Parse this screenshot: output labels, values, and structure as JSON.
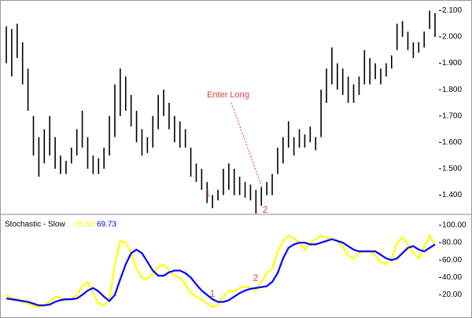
{
  "chart_data": [
    {
      "type": "ohlc",
      "color": "#000000",
      "high": [
        2.04,
        2.03,
        2.05,
        1.98,
        1.88,
        1.7,
        1.62,
        1.65,
        1.7,
        1.62,
        1.55,
        1.53,
        1.58,
        1.65,
        1.72,
        1.62,
        1.55,
        1.54,
        1.58,
        1.7,
        1.82,
        1.88,
        1.85,
        1.78,
        1.72,
        1.65,
        1.62,
        1.7,
        1.78,
        1.8,
        1.75,
        1.7,
        1.68,
        1.65,
        1.58,
        1.52,
        1.5,
        1.45,
        1.4,
        1.42,
        1.5,
        1.52,
        1.5,
        1.47,
        1.45,
        1.44,
        1.42,
        1.43,
        1.45,
        1.48,
        1.58,
        1.62,
        1.68,
        1.62,
        1.65,
        1.63,
        1.66,
        1.62,
        1.8,
        1.88,
        1.96,
        1.9,
        1.88,
        1.85,
        1.82,
        1.85,
        1.95,
        1.92,
        1.9,
        1.88,
        1.9,
        1.93,
        2.05,
        2.06,
        2.02,
        1.98,
        1.98,
        2.02,
        2.1,
        2.09
      ],
      "low": [
        1.9,
        1.85,
        1.92,
        1.82,
        1.72,
        1.55,
        1.47,
        1.52,
        1.55,
        1.5,
        1.48,
        1.48,
        1.52,
        1.55,
        1.58,
        1.5,
        1.48,
        1.48,
        1.5,
        1.55,
        1.62,
        1.7,
        1.72,
        1.66,
        1.6,
        1.55,
        1.56,
        1.58,
        1.65,
        1.7,
        1.65,
        1.6,
        1.58,
        1.58,
        1.47,
        1.45,
        1.42,
        1.37,
        1.35,
        1.38,
        1.4,
        1.42,
        1.4,
        1.4,
        1.39,
        1.38,
        1.33,
        1.36,
        1.4,
        1.4,
        1.48,
        1.52,
        1.58,
        1.55,
        1.58,
        1.58,
        1.6,
        1.57,
        1.62,
        1.75,
        1.82,
        1.8,
        1.78,
        1.75,
        1.75,
        1.78,
        1.82,
        1.82,
        1.84,
        1.82,
        1.85,
        1.88,
        1.95,
        2.0,
        1.95,
        1.92,
        1.94,
        1.96,
        2.03,
        2.0
      ],
      "ylim": [
        1.33,
        2.14
      ],
      "yticks": [
        {
          "value": 1.4,
          "label": "1.400"
        },
        {
          "value": 1.5,
          "label": "1.500"
        },
        {
          "value": 1.6,
          "label": "1.600"
        },
        {
          "value": 1.7,
          "label": "1.700"
        },
        {
          "value": 1.8,
          "label": "1.800"
        },
        {
          "value": 1.9,
          "label": "1.900"
        },
        {
          "value": 2.0,
          "label": "2.000"
        },
        {
          "value": 2.1,
          "label": "2.100"
        }
      ],
      "annotations": [
        "Enter Long",
        "1",
        "2"
      ]
    },
    {
      "type": "line",
      "title": "Stochastic - Slow",
      "series": [
        {
          "name": "65.53",
          "color": "#ffff00",
          "values": [
            20,
            16,
            15,
            12,
            10,
            8,
            6,
            8,
            12,
            18,
            17,
            14,
            15,
            20,
            30,
            35,
            22,
            10,
            8,
            15,
            55,
            82,
            80,
            68,
            50,
            40,
            38,
            45,
            52,
            55,
            48,
            42,
            40,
            32,
            22,
            18,
            15,
            10,
            6,
            8,
            18,
            25,
            24,
            28,
            30,
            28,
            25,
            35,
            45,
            50,
            70,
            82,
            88,
            85,
            80,
            72,
            80,
            84,
            88,
            86,
            84,
            82,
            75,
            65,
            62,
            68,
            70,
            70,
            65,
            58,
            55,
            62,
            80,
            86,
            78,
            68,
            62,
            75,
            88,
            78
          ]
        },
        {
          "name": "69.73",
          "color": "#0000ff",
          "values": [
            16,
            15,
            14,
            13,
            12,
            10,
            8,
            8,
            9,
            12,
            14,
            15,
            15,
            16,
            20,
            25,
            28,
            24,
            18,
            13,
            20,
            38,
            55,
            68,
            72,
            68,
            58,
            48,
            42,
            42,
            46,
            48,
            48,
            45,
            40,
            32,
            25,
            20,
            15,
            12,
            12,
            14,
            18,
            22,
            25,
            27,
            28,
            29,
            30,
            35,
            45,
            62,
            74,
            78,
            80,
            80,
            78,
            78,
            80,
            82,
            84,
            82,
            80,
            76,
            72,
            70,
            70,
            70,
            70,
            66,
            62,
            60,
            62,
            68,
            74,
            76,
            72,
            70,
            74,
            78
          ]
        }
      ],
      "ylim": [
        -2,
        108
      ],
      "yticks": [
        {
          "value": 20,
          "label": "20.00"
        },
        {
          "value": 40,
          "label": "40.00"
        },
        {
          "value": 60,
          "label": "60.00"
        },
        {
          "value": 80,
          "label": "80.00"
        },
        {
          "value": 100,
          "label": "100.00"
        }
      ],
      "annotations": [
        "1",
        "2"
      ]
    }
  ]
}
